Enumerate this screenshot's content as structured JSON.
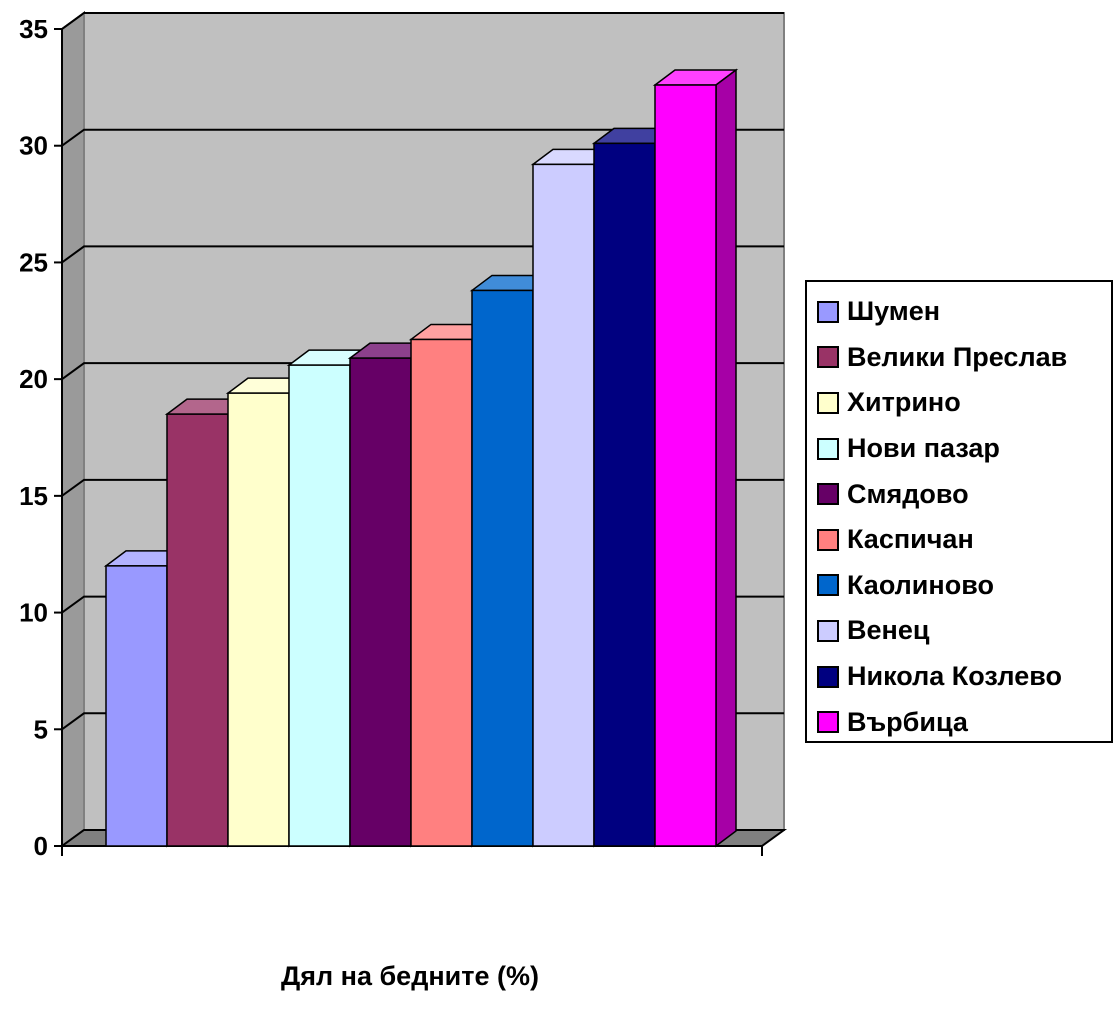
{
  "chart_data": {
    "type": "bar",
    "xlabel": "Дял на бедните (%)",
    "ylabel": "",
    "ylim": [
      0,
      35
    ],
    "yticks": [
      "0",
      "5",
      "10",
      "15",
      "20",
      "25",
      "30",
      "35"
    ],
    "grid": true,
    "legend_position": "right",
    "series": [
      {
        "name": "Шумен",
        "value": 12.0,
        "color": "#9999FF"
      },
      {
        "name": "Велики Преслав",
        "value": 18.5,
        "color": "#993366"
      },
      {
        "name": "Хитрино",
        "value": 19.4,
        "color": "#FFFFCC"
      },
      {
        "name": "Нови пазар",
        "value": 20.6,
        "color": "#CCFFFF"
      },
      {
        "name": "Смядово",
        "value": 20.9,
        "color": "#660066"
      },
      {
        "name": "Каспичан",
        "value": 21.7,
        "color": "#FF8080"
      },
      {
        "name": "Каолиново",
        "value": 23.8,
        "color": "#0066CC"
      },
      {
        "name": "Венец",
        "value": 29.2,
        "color": "#CCCCFF"
      },
      {
        "name": "Никола Козлево",
        "value": 30.1,
        "color": "#000080"
      },
      {
        "name": "Върбица",
        "value": 32.6,
        "color": "#FF00FF"
      }
    ]
  }
}
